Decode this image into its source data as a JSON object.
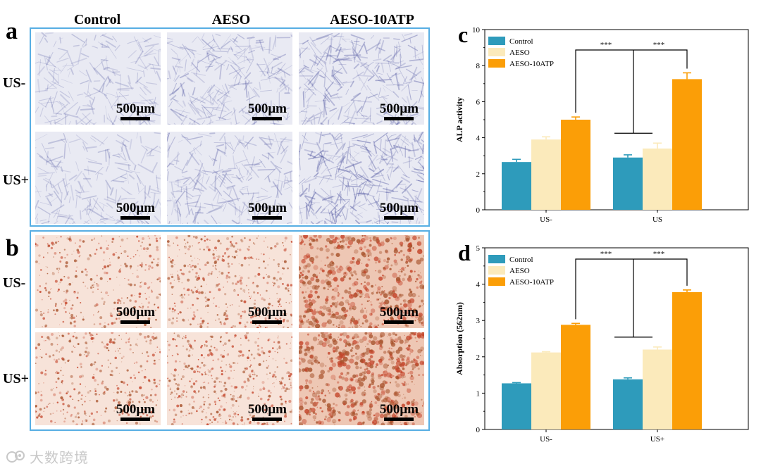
{
  "figure": {
    "panel_a": {
      "letter": "a",
      "columns": [
        "Control",
        "AESO",
        "AESO-10ATP"
      ],
      "rows": [
        "US-",
        "US+"
      ],
      "scale_label": "500μm",
      "stain_color": "#5a5fa6",
      "density": [
        [
          0.35,
          0.5,
          0.65
        ],
        [
          0.35,
          0.5,
          0.8
        ]
      ]
    },
    "panel_b": {
      "letter": "b",
      "rows": [
        "US-",
        "US+"
      ],
      "scale_label": "500μm",
      "stain_color": "#c4442a",
      "density": [
        [
          0.3,
          0.45,
          0.75
        ],
        [
          0.35,
          0.55,
          0.9
        ]
      ]
    },
    "watermark": "大数跨境"
  },
  "chart_data": [
    {
      "type": "bar",
      "panel_letter": "c",
      "ylabel": "ALP activity",
      "xlabel": "",
      "ylim": [
        0,
        10
      ],
      "yticks": [
        "0",
        "2",
        "4",
        "6",
        "8",
        "10"
      ],
      "categories": [
        "US-",
        "US"
      ],
      "series": [
        {
          "name": "Control",
          "color": "#2e9bbb",
          "values": [
            2.65,
            2.9
          ],
          "errors": [
            0.15,
            0.15
          ]
        },
        {
          "name": "AESO",
          "color": "#fbeabb",
          "values": [
            3.9,
            3.4
          ],
          "errors": [
            0.15,
            0.3
          ]
        },
        {
          "name": "AESO-10ATP",
          "color": "#fb9e07",
          "values": [
            5.0,
            7.25
          ],
          "errors": [
            0.15,
            0.35
          ]
        }
      ],
      "significance": [
        "***",
        "***"
      ],
      "legend_position": "top-left"
    },
    {
      "type": "bar",
      "panel_letter": "d",
      "ylabel": "Absorption (562nm)",
      "xlabel": "",
      "ylim": [
        0,
        5
      ],
      "yticks": [
        "0",
        "1",
        "2",
        "3",
        "4",
        "5"
      ],
      "categories": [
        "US-",
        "US+"
      ],
      "series": [
        {
          "name": "Control",
          "color": "#2e9bbb",
          "values": [
            1.27,
            1.38
          ],
          "errors": [
            0.02,
            0.04
          ]
        },
        {
          "name": "AESO",
          "color": "#fbeabb",
          "values": [
            2.12,
            2.2
          ],
          "errors": [
            0.02,
            0.07
          ]
        },
        {
          "name": "AESO-10ATP",
          "color": "#fb9e07",
          "values": [
            2.88,
            3.78
          ],
          "errors": [
            0.04,
            0.06
          ]
        }
      ],
      "significance": [
        "***",
        "***"
      ],
      "legend_position": "top-left"
    }
  ]
}
